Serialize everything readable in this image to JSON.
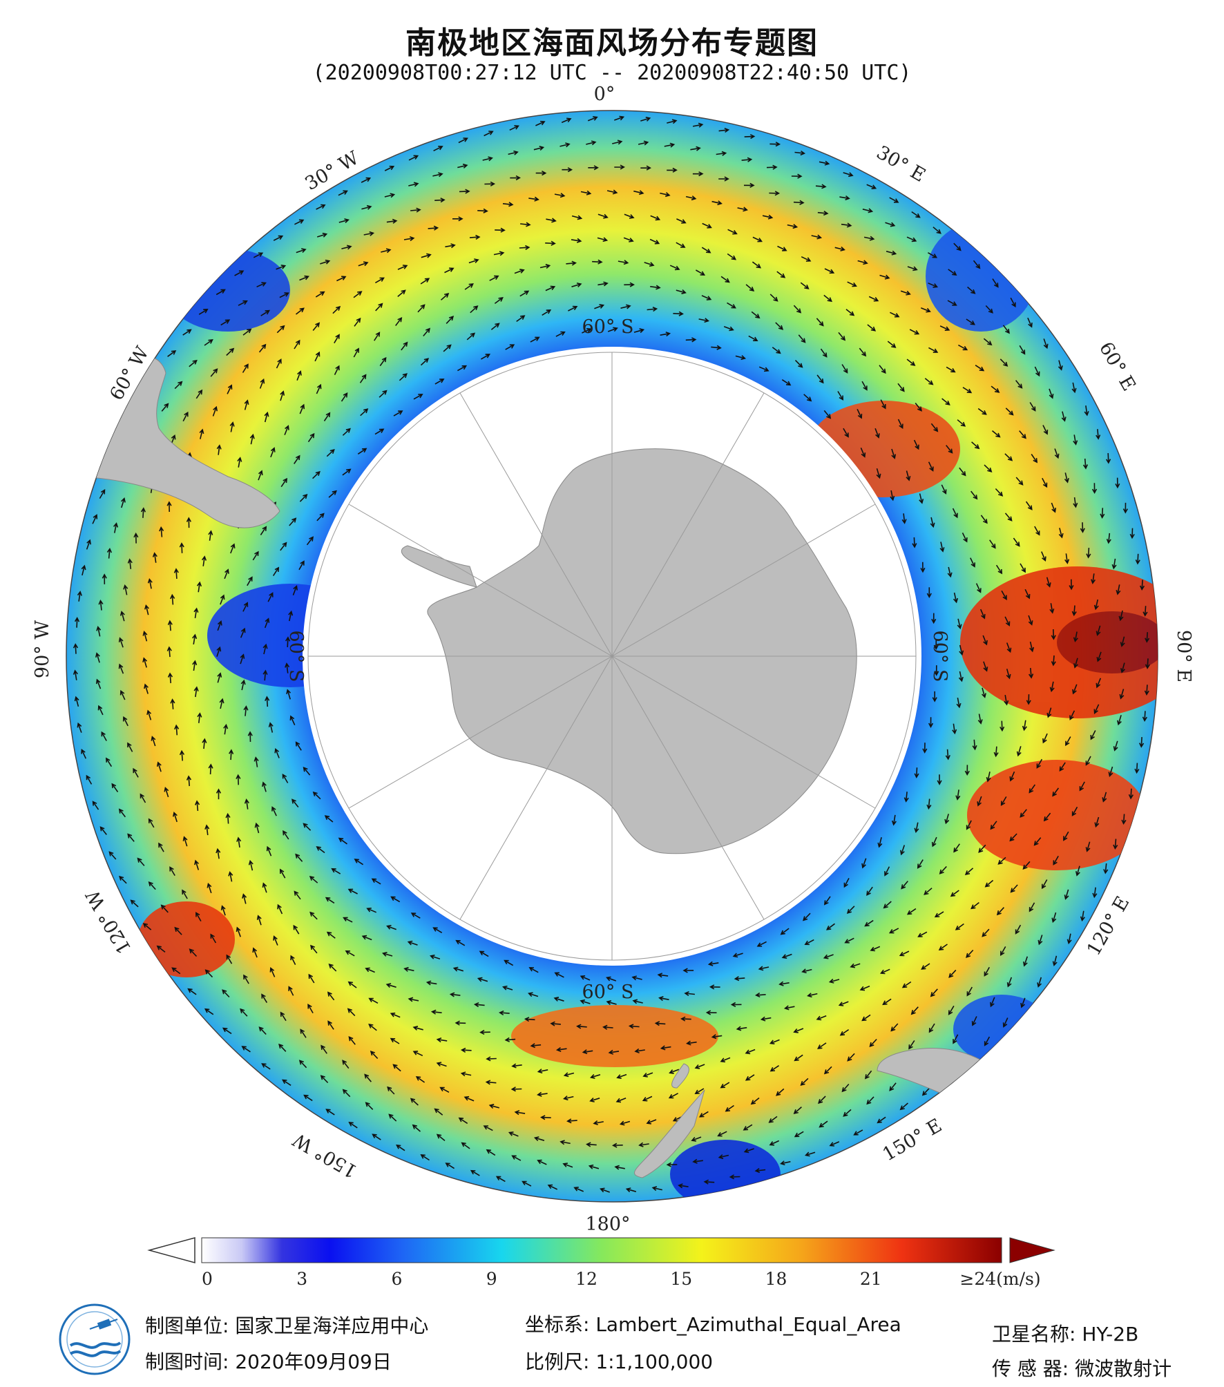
{
  "header": {
    "title": "南极地区海面风场分布专题图",
    "time_range": "(20200908T00:27:12 UTC -- 20200908T22:40:50 UTC)"
  },
  "map": {
    "projection_label": "Lambert_Azimuthal_Equal_Area",
    "meridian_labels": [
      "0°",
      "30° E",
      "60° E",
      "90° E",
      "120° E",
      "150° E",
      "180°",
      "150° W",
      "120° W",
      "90° W",
      "60° W",
      "30° W"
    ],
    "parallel_labels": [
      "60° S",
      "60° S",
      "60° S",
      "60° S"
    ],
    "colors": {
      "land": "#bdbdbd",
      "sea_ice_area": "#ffffff",
      "grid": "#9a9a9a",
      "arrow": "#111111"
    }
  },
  "colorbar": {
    "ticks": [
      "0",
      "3",
      "6",
      "9",
      "12",
      "15",
      "18",
      "21",
      "≥24(m/s)"
    ],
    "range": [
      0,
      24
    ],
    "unit": "m/s",
    "over_color": "#8b0000",
    "under_color": "#ffffff"
  },
  "footer": {
    "producer_label": "制图单位: 国家卫星海洋应用中心",
    "date_label": "制图时间: 2020年09月09日",
    "coord_label": "坐标系: Lambert_Azimuthal_Equal_Area",
    "scale_label": "比例尺: 1:1,100,000",
    "satellite_label": "卫星名称: HY-2B",
    "sensor_label": "传 感 器: 微波散射计"
  }
}
